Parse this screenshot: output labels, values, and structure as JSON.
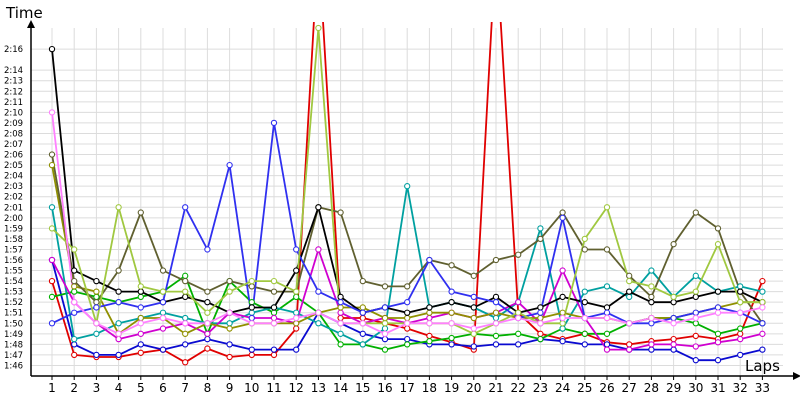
{
  "chart_data": {
    "type": "line",
    "title": "",
    "xlabel": "Laps",
    "ylabel": "Time",
    "x": [
      1,
      2,
      3,
      4,
      5,
      6,
      7,
      8,
      9,
      10,
      11,
      12,
      13,
      14,
      15,
      16,
      17,
      18,
      19,
      20,
      21,
      22,
      23,
      24,
      25,
      26,
      27,
      28,
      29,
      30,
      31,
      32,
      33
    ],
    "x_ticks": [
      "1",
      "2",
      "3",
      "4",
      "5",
      "6",
      "7",
      "8",
      "9",
      "10",
      "11",
      "12",
      "13",
      "14",
      "15",
      "16",
      "17",
      "18",
      "19",
      "20",
      "21",
      "22",
      "23",
      "24",
      "25",
      "26",
      "27",
      "28",
      "29",
      "30",
      "31",
      "32",
      "33"
    ],
    "y_ticks": [
      "1:46",
      "1:47",
      "1:48",
      "1:49",
      "1:50",
      "1:51",
      "1:52",
      "1:53",
      "1:54",
      "1:55",
      "1:56",
      "1:57",
      "1:58",
      "1:59",
      "2:00",
      "2:01",
      "2:02",
      "2:03",
      "2:04",
      "2:05",
      "2:06",
      "2:07",
      "2:08",
      "2:09",
      "2:10",
      "2:11",
      "2:12",
      "2:13",
      "2:14",
      "2:16"
    ],
    "y_tick_seconds": [
      106,
      107,
      108,
      109,
      110,
      111,
      112,
      113,
      114,
      115,
      116,
      117,
      118,
      119,
      120,
      121,
      122,
      123,
      124,
      125,
      126,
      127,
      128,
      129,
      130,
      131,
      132,
      133,
      134,
      136
    ],
    "ylim_seconds": [
      105,
      138
    ],
    "grid": true,
    "legend": "none",
    "series": [
      {
        "color": "#e00000",
        "values": [
          114,
          107,
          106.8,
          106.8,
          107.2,
          107.5,
          106.3,
          107.6,
          106.8,
          107,
          107,
          109.5,
          146,
          110.5,
          110.5,
          110,
          109.5,
          108.8,
          108.2,
          107.5,
          146,
          111,
          109,
          108.5,
          109,
          108.2,
          108,
          108.3,
          108.5,
          108.8,
          108.5,
          109,
          114
        ]
      },
      {
        "color": "#0a0ad0",
        "values": [
          116,
          108,
          107,
          107,
          108,
          107.5,
          108,
          108.5,
          108,
          107.5,
          107.5,
          107.5,
          111,
          110,
          109,
          108.5,
          108.5,
          108,
          108,
          107.8,
          108,
          108,
          108.5,
          108.3,
          108,
          108,
          107.5,
          107.5,
          107.5,
          106.5,
          106.5,
          107,
          107.5
        ]
      },
      {
        "color": "#00b000",
        "values": [
          112.5,
          113,
          112.5,
          112,
          112.5,
          113,
          114.5,
          109,
          114,
          112,
          111,
          112.5,
          111,
          108,
          108,
          107.5,
          108,
          108.3,
          108.6,
          109,
          108.8,
          109,
          108.5,
          109.5,
          109,
          109,
          110,
          110.5,
          110.5,
          110,
          109,
          109.5,
          110
        ]
      },
      {
        "color": "#00a0a0",
        "values": [
          121,
          108.5,
          109,
          110,
          110.5,
          111,
          110.5,
          110,
          110,
          111,
          111.5,
          111,
          110,
          109,
          108,
          109.5,
          123,
          111.5,
          112,
          111.5,
          110.5,
          112,
          119,
          109.5,
          113,
          113.5,
          112.5,
          115,
          112.5,
          114.5,
          113,
          113.5,
          113
        ]
      },
      {
        "color": "#d000d0",
        "values": [
          116,
          112,
          110,
          108.5,
          109,
          109.5,
          110,
          109,
          111,
          110.5,
          110.5,
          110,
          117,
          111,
          110,
          110.5,
          110,
          110.5,
          111,
          110.5,
          111,
          112,
          110,
          115,
          110.5,
          107.5,
          107.5,
          108,
          108,
          107.8,
          108.2,
          108.5,
          109
        ]
      },
      {
        "color": "#909000",
        "values": [
          125,
          113.5,
          113,
          109,
          110.5,
          110.5,
          109,
          110,
          109.5,
          110,
          110,
          110,
          111,
          111.5,
          111.5,
          110.5,
          110.5,
          111,
          111,
          110.5,
          111,
          110.5,
          110.5,
          111,
          110.5,
          110.5,
          110,
          110.5,
          110.5,
          111,
          111.5,
          112,
          112
        ]
      },
      {
        "color": "#606030",
        "values": [
          126,
          114,
          112,
          115,
          120.5,
          115,
          114,
          113,
          114,
          113.5,
          113,
          113,
          121,
          120.5,
          114,
          113.5,
          113.5,
          116,
          115.5,
          114.5,
          116,
          116.5,
          118,
          120.5,
          117,
          117,
          114.5,
          112.5,
          117.5,
          120.5,
          119,
          113,
          110
        ]
      },
      {
        "color": "#000000",
        "values": [
          136,
          115,
          114,
          113,
          113,
          112,
          112.5,
          112,
          111,
          111.5,
          111.5,
          115,
          121,
          112.5,
          111,
          111.5,
          111,
          111.5,
          112,
          111.5,
          112.5,
          111,
          111.5,
          112.5,
          112,
          111.5,
          113,
          112,
          112,
          112.5,
          113,
          113,
          112
        ]
      },
      {
        "color": "#3030f0",
        "values": [
          110,
          111,
          111.5,
          112,
          111.5,
          112,
          121,
          117,
          125,
          110.5,
          129,
          117,
          113,
          112,
          111,
          111.5,
          112,
          116,
          113,
          112.5,
          112,
          110.5,
          111,
          120,
          110.5,
          111,
          110,
          110,
          110.5,
          111,
          111.5,
          111,
          110
        ]
      },
      {
        "color": "#a0c840",
        "values": [
          119,
          117,
          110,
          121,
          113.5,
          113,
          113,
          111,
          113,
          114,
          114,
          113,
          138,
          110,
          110,
          110,
          110,
          110,
          110,
          109,
          110,
          111,
          110,
          110,
          118,
          121,
          114,
          113.5,
          112.5,
          113,
          117.5,
          112,
          112
        ]
      },
      {
        "color": "#ff80ff",
        "values": [
          130,
          112,
          110,
          109,
          110,
          110.5,
          110,
          110,
          111,
          110,
          110,
          110.5,
          111,
          110,
          110,
          109,
          110,
          110,
          110,
          109.5,
          110,
          110.5,
          110,
          110.5,
          110.5,
          110.5,
          110,
          110.5,
          110,
          110.5,
          111,
          111,
          111.5
        ]
      }
    ]
  }
}
